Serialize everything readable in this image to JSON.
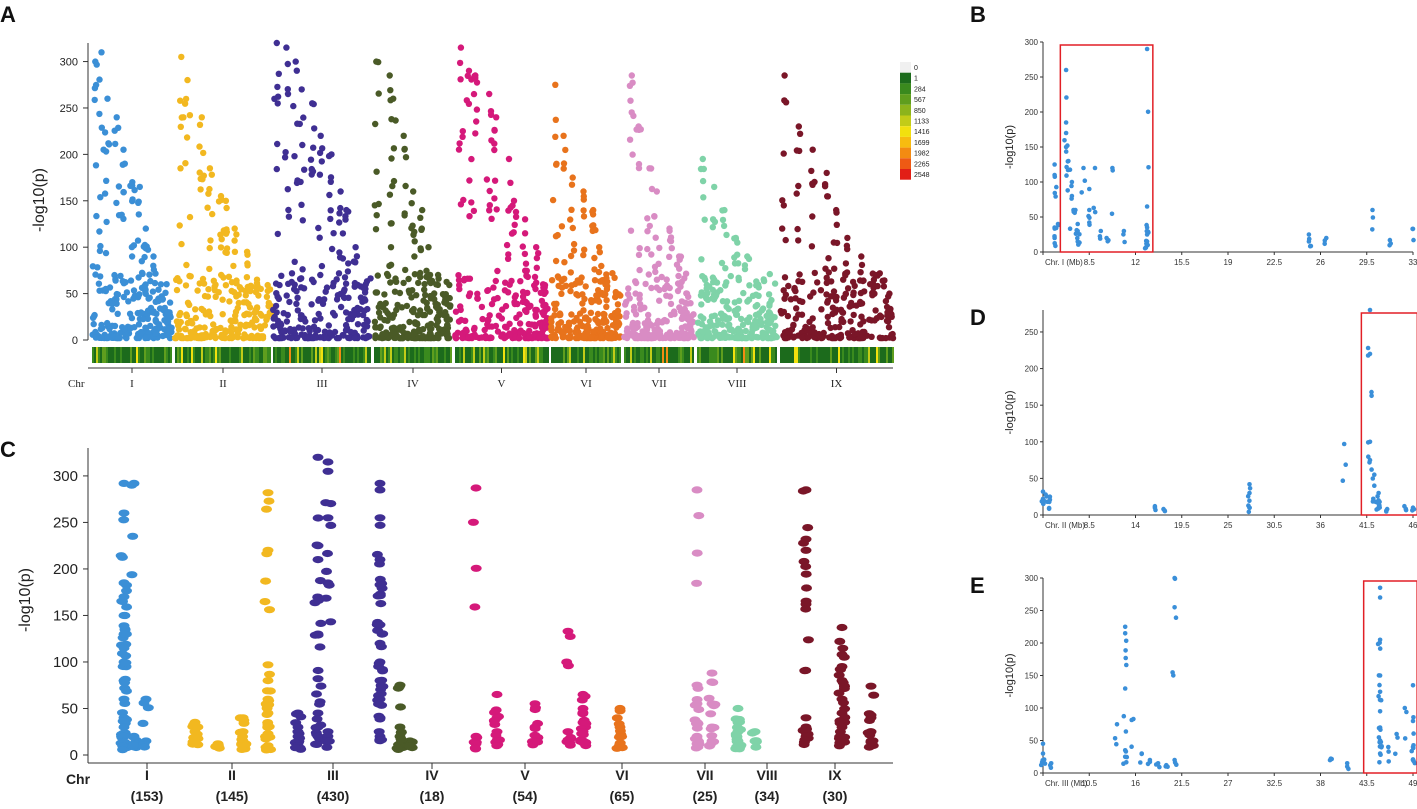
{
  "panels": {
    "A": "A",
    "B": "B",
    "C": "C",
    "D": "D",
    "E": "E"
  },
  "colors": {
    "I": "#3b8fd6",
    "II": "#f2b820",
    "III": "#3f2f93",
    "IV": "#4a5a27",
    "V": "#d5197a",
    "VI": "#e8731c",
    "VII": "#d98cc4",
    "VIII": "#7fd3a8",
    "IX": "#7a1628",
    "zoom": "#3a8fd9",
    "highlight": "#e21f26"
  },
  "chart_data": [
    {
      "id": "A",
      "type": "scatter",
      "title": "",
      "ylabel": "-log10(p)",
      "ylim": [
        0,
        320
      ],
      "yticks": [
        "0",
        "50",
        "100",
        "150",
        "200",
        "250",
        "300"
      ],
      "xlabel_prefix": "Chr",
      "chromosomes": [
        "I",
        "II",
        "III",
        "IV",
        "V",
        "VI",
        "VII",
        "VIII",
        "IX"
      ],
      "series_peaks": [
        {
          "chr": "I",
          "values": [
            300,
            310,
            260,
            240,
            205,
            170,
            165,
            120,
            90,
            60,
            30
          ]
        },
        {
          "chr": "II",
          "values": [
            305,
            280,
            240,
            185,
            155,
            150,
            120,
            95,
            65,
            40
          ]
        },
        {
          "chr": "III",
          "values": [
            320,
            315,
            300,
            270,
            255,
            220,
            200,
            160,
            140,
            100,
            60
          ]
        },
        {
          "chr": "IV",
          "values": [
            300,
            285,
            260,
            220,
            160,
            140,
            100,
            60,
            30
          ]
        },
        {
          "chr": "V",
          "values": [
            315,
            290,
            285,
            265,
            240,
            195,
            150,
            130,
            100,
            60
          ]
        },
        {
          "chr": "VI",
          "values": [
            275,
            220,
            175,
            160,
            140,
            100,
            60,
            30
          ]
        },
        {
          "chr": "VII",
          "values": [
            285,
            230,
            185,
            160,
            120,
            90,
            50
          ]
        },
        {
          "chr": "VIII",
          "values": [
            195,
            165,
            140,
            110,
            90,
            60,
            30
          ]
        },
        {
          "chr": "IX",
          "values": [
            285,
            230,
            205,
            180,
            140,
            110,
            90,
            70,
            50
          ]
        }
      ],
      "density_legend": {
        "labels": [
          "0",
          "1",
          "284",
          "567",
          "850",
          "1133",
          "1416",
          "1699",
          "1982",
          "2265",
          "2548"
        ],
        "colors": [
          "#f0f0f0",
          "#1c6b1c",
          "#3a8a1e",
          "#5f9e1e",
          "#8cb41c",
          "#c2cc18",
          "#f2e10e",
          "#f7bc10",
          "#f38b12",
          "#ee5a14",
          "#e21f16"
        ]
      }
    },
    {
      "id": "B",
      "type": "scatter",
      "ylabel": "-log10(p)",
      "ylim": [
        0,
        300
      ],
      "yticks": [
        "0",
        "50",
        "100",
        "150",
        "200",
        "250",
        "300"
      ],
      "xlim": [
        1,
        33
      ],
      "xticks": [
        "Chr. I (Mb)",
        "8.5",
        "12",
        "15.5",
        "19",
        "22.5",
        "26",
        "29.5",
        "33"
      ],
      "points": [
        [
          2,
          35
        ],
        [
          2,
          20
        ],
        [
          2,
          110
        ],
        [
          2,
          125
        ],
        [
          2.3,
          40
        ],
        [
          3,
          260
        ],
        [
          3,
          185
        ],
        [
          3,
          170
        ],
        [
          3,
          150
        ],
        [
          3.2,
          130
        ],
        [
          3.5,
          100
        ],
        [
          3.5,
          80
        ],
        [
          3.8,
          60
        ],
        [
          4,
          40
        ],
        [
          4,
          30
        ],
        [
          4,
          15
        ],
        [
          4.5,
          120
        ],
        [
          5,
          90
        ],
        [
          5,
          60
        ],
        [
          5.5,
          120
        ],
        [
          6,
          30
        ],
        [
          6.5,
          20
        ],
        [
          7,
          120
        ],
        [
          8,
          30
        ],
        [
          10,
          290
        ],
        [
          10,
          65
        ],
        [
          10,
          35
        ],
        [
          10,
          25
        ],
        [
          10,
          15
        ],
        [
          10,
          10
        ],
        [
          24,
          25
        ],
        [
          24,
          15
        ],
        [
          25.5,
          20
        ],
        [
          29.5,
          60
        ],
        [
          31,
          17
        ],
        [
          33,
          33
        ]
      ],
      "highlight_x": [
        2.5,
        10.5
      ]
    },
    {
      "id": "C",
      "type": "scatter",
      "ylabel": "-log10(p)",
      "ylim": [
        0,
        320
      ],
      "yticks": [
        "0",
        "50",
        "100",
        "150",
        "200",
        "250",
        "300"
      ],
      "xlabel_prefix": "Chr",
      "chromosomes": [
        "I",
        "II",
        "III",
        "IV",
        "V",
        "VI",
        "VII",
        "VIII",
        "IX"
      ],
      "counts": [
        "(153)",
        "(145)",
        "(430)",
        "(18)",
        "(54)",
        "(65)",
        "(25)",
        "(34)",
        "(30)"
      ],
      "columns": [
        {
          "chr": "I",
          "x": 124,
          "values": [
            292,
            260,
            185,
            170,
            150,
            130,
            115,
            100,
            80,
            60,
            40,
            30,
            20,
            10
          ]
        },
        {
          "chr": "I",
          "x": 134,
          "values": [
            292,
            20,
            12
          ]
        },
        {
          "chr": "I",
          "x": 146,
          "values": [
            60,
            15
          ]
        },
        {
          "chr": "II",
          "x": 195,
          "values": [
            35,
            25,
            15
          ]
        },
        {
          "chr": "II",
          "x": 218,
          "values": [
            12,
            10
          ]
        },
        {
          "chr": "II",
          "x": 243,
          "values": [
            40,
            25,
            15,
            10
          ]
        },
        {
          "chr": "II",
          "x": 268,
          "values": [
            282,
            220,
            97,
            80,
            60,
            45,
            30,
            20,
            10
          ]
        },
        {
          "chr": "III",
          "x": 298,
          "values": [
            45,
            30,
            20,
            10
          ]
        },
        {
          "chr": "III",
          "x": 318,
          "values": [
            320,
            225,
            210,
            130,
            82,
            45,
            30,
            20
          ]
        },
        {
          "chr": "III",
          "x": 328,
          "values": [
            315,
            305,
            255,
            25,
            15
          ]
        },
        {
          "chr": "III",
          "x": 380,
          "values": [
            292,
            285,
            255,
            210,
            183,
            140,
            120,
            100,
            80,
            60,
            40,
            20
          ]
        },
        {
          "chr": "IV",
          "x": 400,
          "values": [
            75,
            30,
            20,
            10
          ]
        },
        {
          "chr": "IV",
          "x": 410,
          "values": [
            15,
            10
          ]
        },
        {
          "chr": "V",
          "x": 476,
          "values": [
            287,
            20,
            12
          ]
        },
        {
          "chr": "V",
          "x": 497,
          "values": [
            65,
            40,
            25,
            15
          ]
        },
        {
          "chr": "V",
          "x": 535,
          "values": [
            55,
            30,
            15
          ]
        },
        {
          "chr": "V",
          "x": 568,
          "values": [
            133,
            25,
            15
          ]
        },
        {
          "chr": "V",
          "x": 583,
          "values": [
            65,
            50,
            35,
            25,
            15
          ]
        },
        {
          "chr": "VI",
          "x": 620,
          "values": [
            50,
            30,
            20,
            12
          ]
        },
        {
          "chr": "VII",
          "x": 697,
          "values": [
            285,
            75,
            55,
            35,
            20,
            12
          ]
        },
        {
          "chr": "VII",
          "x": 712,
          "values": [
            88,
            55,
            30,
            15
          ]
        },
        {
          "chr": "VIII",
          "x": 738,
          "values": [
            50,
            35,
            25,
            15,
            10
          ]
        },
        {
          "chr": "VIII",
          "x": 755,
          "values": [
            25,
            15
          ]
        },
        {
          "chr": "IX",
          "x": 806,
          "values": [
            285,
            232,
            220,
            162,
            40,
            30,
            20
          ]
        },
        {
          "chr": "IX",
          "x": 842,
          "values": [
            137,
            108,
            95,
            80,
            60,
            45,
            30,
            15
          ]
        },
        {
          "chr": "IX",
          "x": 871,
          "values": [
            74,
            40,
            25,
            15
          ]
        }
      ]
    },
    {
      "id": "D",
      "type": "scatter",
      "ylabel": "-log10(p)",
      "ylim": [
        0,
        280
      ],
      "yticks": [
        "0",
        "50",
        "100",
        "150",
        "200",
        "250"
      ],
      "xlim": [
        3,
        46
      ],
      "xticks": [
        "Chr. II (Mb)",
        "8.5",
        "14",
        "19.5",
        "25",
        "30.5",
        "36",
        "41.5",
        "46"
      ],
      "points": [
        [
          3,
          32
        ],
        [
          3,
          22
        ],
        [
          3.3,
          28
        ],
        [
          3.5,
          18
        ],
        [
          3.8,
          25
        ],
        [
          16,
          12
        ],
        [
          17,
          8
        ],
        [
          27,
          42
        ],
        [
          27,
          30
        ],
        [
          27,
          10
        ],
        [
          38,
          97
        ],
        [
          41,
          280
        ],
        [
          41,
          220
        ],
        [
          41,
          100
        ],
        [
          41,
          75
        ],
        [
          41.5,
          55
        ],
        [
          41.5,
          40
        ],
        [
          42,
          30
        ],
        [
          42,
          20
        ],
        [
          42,
          15
        ],
        [
          42,
          10
        ],
        [
          43,
          8
        ],
        [
          45,
          12
        ],
        [
          46,
          10
        ]
      ],
      "highlight_x": [
        40,
        46.5
      ]
    },
    {
      "id": "E",
      "type": "scatter",
      "ylabel": "-log10(p)",
      "ylim": [
        0,
        300
      ],
      "yticks": [
        "0",
        "50",
        "100",
        "150",
        "200",
        "250",
        "300"
      ],
      "xlim": [
        5,
        50
      ],
      "xticks": [
        "Chr. III (Mb)",
        "10.5",
        "16",
        "21.5",
        "27",
        "32.5",
        "38",
        "43.5",
        "49"
      ],
      "points": [
        [
          5,
          45
        ],
        [
          5,
          30
        ],
        [
          5,
          18
        ],
        [
          6,
          15
        ],
        [
          14,
          75
        ],
        [
          15,
          225
        ],
        [
          15,
          215
        ],
        [
          15,
          130
        ],
        [
          15,
          35
        ],
        [
          15,
          25
        ],
        [
          16,
          83
        ],
        [
          17,
          30
        ],
        [
          18,
          20
        ],
        [
          19,
          15
        ],
        [
          20,
          12
        ],
        [
          21,
          300
        ],
        [
          21,
          255
        ],
        [
          21,
          20
        ],
        [
          40,
          22
        ],
        [
          42,
          15
        ],
        [
          46,
          285
        ],
        [
          46,
          270
        ],
        [
          46,
          205
        ],
        [
          46,
          150
        ],
        [
          46,
          125
        ],
        [
          46,
          95
        ],
        [
          46,
          70
        ],
        [
          46,
          50
        ],
        [
          46,
          30
        ],
        [
          47,
          40
        ],
        [
          48,
          60
        ],
        [
          49,
          100
        ],
        [
          50,
          135
        ],
        [
          50,
          80
        ],
        [
          50,
          40
        ],
        [
          50,
          20
        ]
      ],
      "highlight_x": [
        44,
        50.5
      ]
    }
  ]
}
